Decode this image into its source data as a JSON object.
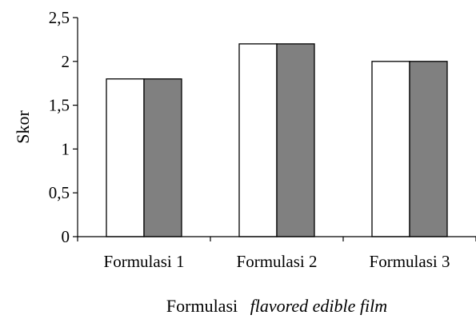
{
  "chart_data": {
    "type": "bar",
    "categories": [
      "Formulasi 1",
      "Formulasi 2",
      "Formulasi 3"
    ],
    "series": [
      {
        "values": [
          1.8,
          2.2,
          2.0
        ],
        "color": "#ffffff"
      },
      {
        "values": [
          1.8,
          2.2,
          2.0
        ],
        "color": "#808080"
      }
    ],
    "ylabel": "Skor",
    "xlabel": {
      "plain": "Formulasi",
      "italic": "flavored edible film"
    },
    "ylim": [
      0,
      2.5
    ],
    "yticks": [
      "0",
      "0,5",
      "1",
      "1,5",
      "2",
      "2,5"
    ],
    "grid": false
  }
}
